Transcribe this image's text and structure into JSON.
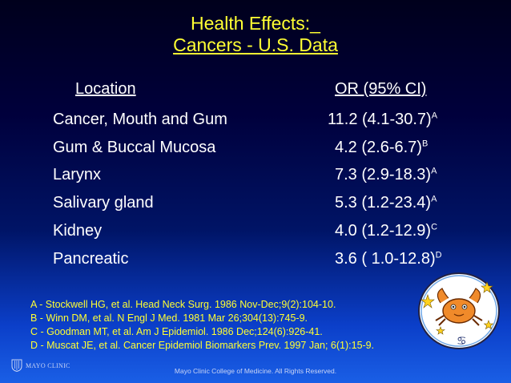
{
  "title": {
    "line1": "Health Effects:_",
    "line2": "Cancers - U.S. Data"
  },
  "table": {
    "headers": {
      "location": "Location",
      "or": "OR (95% CI)"
    },
    "rows": [
      {
        "location": "Cancer, Mouth and Gum",
        "or": "11.2 (4.1-30.7)",
        "ref": "A"
      },
      {
        "location": "Gum & Buccal Mucosa",
        "or": "4.2 (2.6-6.7)",
        "ref": "B"
      },
      {
        "location": "Larynx",
        "or": "7.3 (2.9-18.3)",
        "ref": "A"
      },
      {
        "location": "Salivary gland",
        "or": "5.3 (1.2-23.4)",
        "ref": "A"
      },
      {
        "location": "Kidney",
        "or": "4.0 (1.2-12.9)",
        "ref": "C"
      },
      {
        "location": "Pancreatic",
        "or": "3.6 ( 1.0-12.8)",
        "ref": "D"
      }
    ]
  },
  "references": [
    "A - Stockwell HG, et al.  Head Neck Surg. 1986 Nov-Dec;9(2):104-10.",
    "B - Winn DM, et al. N Engl J Med. 1981 Mar 26;304(13):745-9.",
    "C - Goodman MT, et al. Am J Epidemiol. 1986 Dec;124(6):926-41.",
    "D -  Muscat JE, et al. Cancer Epidemiol Biomarkers Prev. 1997 Jan; 6(1):15-9."
  ],
  "logo": {
    "text": "MAYO CLINIC",
    "icon": "mayo-shield-icon"
  },
  "footer": "Mayo Clinic College of Medicine.  All Rights Reserved.",
  "illustration": {
    "icon": "cancer-crab-zodiac-icon",
    "glyph": "♋"
  },
  "colors": {
    "title": "#ffff33",
    "text": "#ffffff",
    "references": "#ffff33",
    "background_top": "#00001c",
    "background_bottom": "#1a5fe6"
  }
}
